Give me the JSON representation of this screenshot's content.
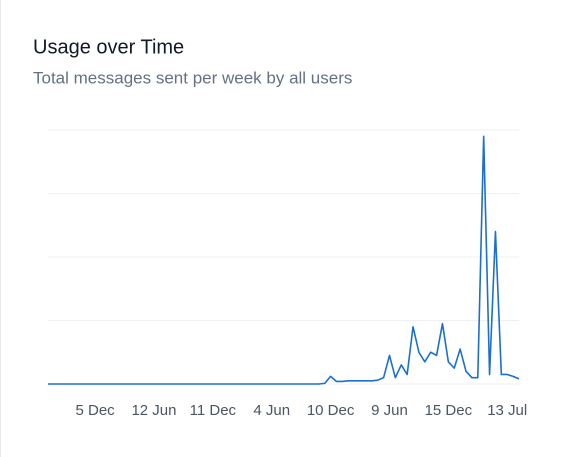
{
  "chart_data": {
    "type": "line",
    "title": "Usage over Time",
    "subtitle": "Total messages sent per week by all users",
    "categories": [
      null,
      null,
      null,
      null,
      null,
      null,
      null,
      null,
      "5 Dec",
      null,
      null,
      null,
      null,
      null,
      null,
      null,
      null,
      null,
      "12 Jun",
      null,
      null,
      null,
      null,
      null,
      null,
      null,
      null,
      null,
      "11 Dec",
      null,
      null,
      null,
      null,
      null,
      null,
      null,
      null,
      null,
      "4 Jun",
      null,
      null,
      null,
      null,
      null,
      null,
      null,
      null,
      null,
      "10 Dec",
      null,
      null,
      null,
      null,
      null,
      null,
      null,
      null,
      null,
      "9 Jun",
      null,
      null,
      null,
      null,
      null,
      null,
      null,
      null,
      null,
      "15 Dec",
      null,
      null,
      null,
      null,
      null,
      null,
      null,
      null,
      null,
      "13 Jul",
      null,
      null
    ],
    "values": [
      0,
      0,
      0,
      0,
      0,
      0,
      0,
      0,
      0,
      0,
      0,
      0,
      0,
      0,
      0,
      0,
      0,
      0,
      0,
      0,
      0,
      0,
      0,
      0,
      0,
      0,
      0,
      0,
      0,
      0,
      0,
      0,
      0,
      0,
      0,
      0,
      0,
      0,
      0,
      0,
      0,
      0,
      0,
      0,
      0,
      0,
      0,
      0.01,
      0.12,
      0.04,
      0.04,
      0.05,
      0.05,
      0.05,
      0.05,
      0.05,
      0.06,
      0.1,
      0.45,
      0.1,
      0.3,
      0.15,
      0.9,
      0.5,
      0.35,
      0.5,
      0.45,
      0.95,
      0.35,
      0.25,
      0.55,
      0.2,
      0.1,
      0.1,
      3.9,
      0.15,
      2.4,
      0.15,
      0.15,
      0.12,
      0.08
    ],
    "color": "#1a6fd1",
    "ylim": [
      0,
      4
    ],
    "yticks": [
      0,
      1,
      2,
      3,
      4
    ],
    "grid": true
  }
}
